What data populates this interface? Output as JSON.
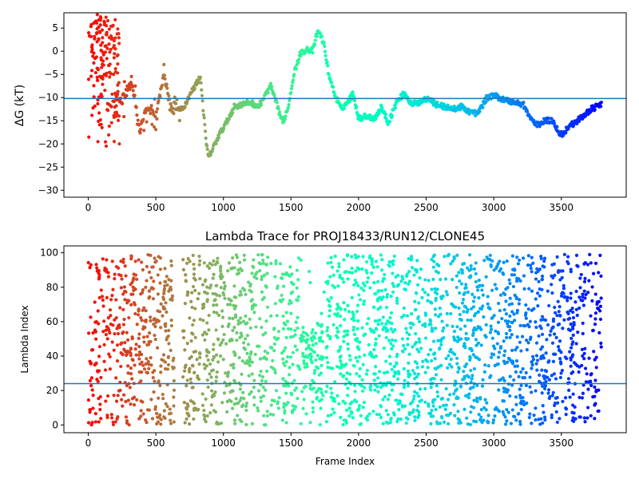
{
  "chart_data": [
    {
      "type": "scatter",
      "title": "",
      "xlabel": "",
      "ylabel": "ΔG (kT)",
      "xlim": [
        -180,
        3980
      ],
      "ylim": [
        -31.5,
        8.3
      ],
      "x_ticks": [
        0,
        500,
        1000,
        1500,
        2000,
        2500,
        3000,
        3500
      ],
      "y_ticks": [
        5,
        0,
        -5,
        -10,
        -15,
        -20,
        -25,
        -30
      ],
      "reference_line": -10.2,
      "reference_color": "#1f77b4",
      "colormap": "rainbow (red at frame 0 → violet at frame 3800)",
      "x_range": [
        0,
        3800
      ],
      "trace_points": [
        [
          200,
          -9.5
        ],
        [
          260,
          -11
        ],
        [
          320,
          -6
        ],
        [
          380,
          -17
        ],
        [
          440,
          -12
        ],
        [
          500,
          -14
        ],
        [
          560,
          -5
        ],
        [
          620,
          -13
        ],
        [
          700,
          -12.5
        ],
        [
          760,
          -9
        ],
        [
          800,
          -7
        ],
        [
          830,
          -5.5
        ],
        [
          870,
          -19
        ],
        [
          890,
          -23
        ],
        [
          930,
          -20.5
        ],
        [
          970,
          -18
        ],
        [
          1030,
          -15
        ],
        [
          1080,
          -12
        ],
        [
          1140,
          -11.5
        ],
        [
          1200,
          -11
        ],
        [
          1260,
          -12
        ],
        [
          1300,
          -10
        ],
        [
          1350,
          -7.5
        ],
        [
          1400,
          -12
        ],
        [
          1440,
          -15.5
        ],
        [
          1480,
          -12
        ],
        [
          1520,
          -5
        ],
        [
          1570,
          -0.5
        ],
        [
          1620,
          0.5
        ],
        [
          1660,
          0
        ],
        [
          1700,
          4.5
        ],
        [
          1740,
          2
        ],
        [
          1780,
          -5
        ],
        [
          1820,
          -9
        ],
        [
          1870,
          -12.5
        ],
        [
          1920,
          -11
        ],
        [
          1960,
          -9
        ],
        [
          2000,
          -14.5
        ],
        [
          2060,
          -14
        ],
        [
          2120,
          -14.5
        ],
        [
          2170,
          -12
        ],
        [
          2220,
          -15.5
        ],
        [
          2280,
          -11
        ],
        [
          2340,
          -9
        ],
        [
          2390,
          -11.5
        ],
        [
          2450,
          -11
        ],
        [
          2520,
          -10
        ],
        [
          2570,
          -11.5
        ],
        [
          2640,
          -12
        ],
        [
          2700,
          -12.5
        ],
        [
          2760,
          -12
        ],
        [
          2820,
          -13
        ],
        [
          2880,
          -13.5
        ],
        [
          2950,
          -10
        ],
        [
          3000,
          -9.5
        ],
        [
          3080,
          -10.5
        ],
        [
          3150,
          -11
        ],
        [
          3220,
          -11.5
        ],
        [
          3260,
          -14
        ],
        [
          3320,
          -16
        ],
        [
          3380,
          -15
        ],
        [
          3440,
          -15
        ],
        [
          3480,
          -17.5
        ],
        [
          3510,
          -18
        ],
        [
          3560,
          -16
        ],
        [
          3600,
          -15.5
        ],
        [
          3660,
          -14
        ],
        [
          3720,
          -12.5
        ],
        [
          3800,
          -11.5
        ]
      ],
      "early_scatter_region": {
        "x": [
          0,
          230
        ],
        "y": [
          -21,
          8
        ]
      }
    },
    {
      "type": "scatter",
      "title": "Lambda Trace for PROJ18433/RUN12/CLONE45",
      "xlabel": "Frame Index",
      "ylabel": "Lambda Index",
      "xlim": [
        -180,
        3980
      ],
      "ylim": [
        -4.5,
        104
      ],
      "x_ticks": [
        0,
        500,
        1000,
        1500,
        2000,
        2500,
        3000,
        3500
      ],
      "y_ticks": [
        0,
        20,
        40,
        60,
        80,
        100
      ],
      "reference_line": 24,
      "reference_color": "#1f77b4",
      "colormap": "rainbow (red at frame 0 → violet at frame 3800)",
      "x_range": [
        0,
        3800
      ],
      "y_range": [
        0,
        99
      ],
      "gaps": [
        [
          640,
          700
        ],
        [
          830,
          845
        ],
        [
          1330,
          1345
        ],
        [
          1750,
          1760
        ],
        [
          2480,
          2490
        ]
      ],
      "sparse_regions": [
        {
          "x": [
            1560,
            1740
          ],
          "y": [
            60,
            99
          ]
        }
      ]
    }
  ]
}
